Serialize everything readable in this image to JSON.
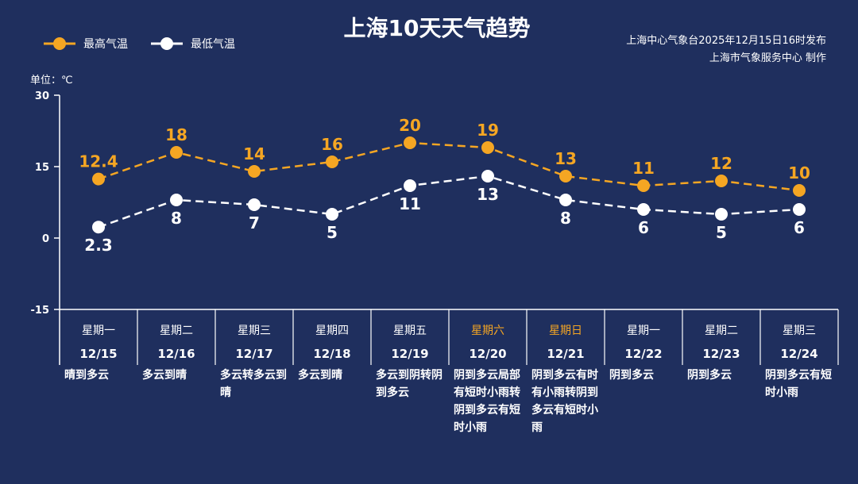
{
  "title": "上海10天天气趋势",
  "legend": {
    "high_label": "最高气温",
    "low_label": "最低气温"
  },
  "source": {
    "line1": "上海中心气象台2025年12月15日16时发布",
    "line2": "上海市气象服务中心  制作"
  },
  "unit_label": "单位：℃",
  "colors": {
    "background": "#1f2f5e",
    "high": "#f5a623",
    "low": "#ffffff"
  },
  "chart_data": {
    "type": "line",
    "ylim": [
      -15,
      30
    ],
    "yticks": [
      30,
      15,
      0,
      -15
    ],
    "grid": false,
    "legend_position": "top-left",
    "weekdays": [
      "星期一",
      "星期二",
      "星期三",
      "星期四",
      "星期五",
      "星期六",
      "星期日",
      "星期一",
      "星期二",
      "星期三"
    ],
    "weekend_flags": [
      false,
      false,
      false,
      false,
      false,
      true,
      true,
      false,
      false,
      false
    ],
    "categories": [
      "12/15",
      "12/16",
      "12/17",
      "12/18",
      "12/19",
      "12/20",
      "12/21",
      "12/22",
      "12/23",
      "12/24"
    ],
    "weather": [
      "晴到多云",
      "多云到晴",
      "多云转多云到晴",
      "多云到晴",
      "多云到阴转阴到多云",
      "阴到多云局部有短时小雨转阴到多云有短时小雨",
      "阴到多云有时有小雨转阴到多云有短时小雨",
      "阴到多云",
      "阴到多云",
      "阴到多云有短时小雨"
    ],
    "series": [
      {
        "name": "最高气温",
        "values": [
          12.4,
          18,
          14,
          16,
          20,
          19,
          13,
          11,
          12,
          10
        ],
        "labels": [
          "12.4",
          "18",
          "14",
          "16",
          "20",
          "19",
          "13",
          "11",
          "12",
          "10"
        ]
      },
      {
        "name": "最低气温",
        "values": [
          2.3,
          8,
          7,
          5,
          11,
          13,
          8,
          6,
          5,
          6
        ],
        "labels": [
          "2.3",
          "8",
          "7",
          "5",
          "11",
          "13",
          "8",
          "6",
          "5",
          "6"
        ]
      }
    ]
  }
}
